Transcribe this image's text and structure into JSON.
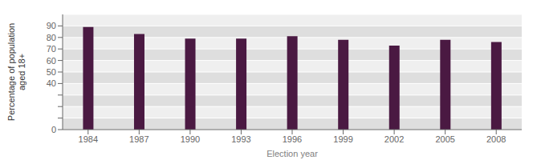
{
  "chart_data": {
    "type": "bar",
    "categories": [
      "1984",
      "1987",
      "1990",
      "1993",
      "1996",
      "1999",
      "2002",
      "2005",
      "2008"
    ],
    "values": [
      89,
      83,
      79,
      79,
      81,
      78,
      73,
      78,
      76
    ],
    "color": "#4a1942",
    "xlabel": "Election year",
    "ylabel": "Percentage of population\naged 18+",
    "ylim": [
      0,
      100
    ],
    "yticks": [
      0,
      {
        "value": 10,
        "label": ""
      },
      {
        "value": 20,
        "label": ""
      },
      {
        "value": 30,
        "label": ""
      },
      40,
      50,
      60,
      70,
      80,
      90
    ],
    "grid": true
  }
}
